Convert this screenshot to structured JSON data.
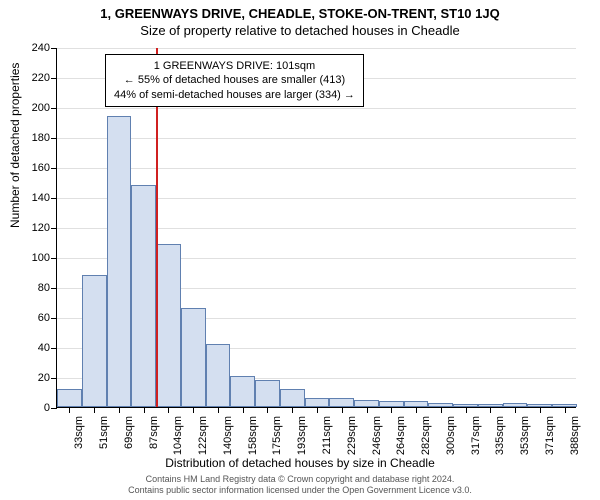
{
  "chart": {
    "type": "histogram",
    "title_main": "1, GREENWAYS DRIVE, CHEADLE, STOKE-ON-TRENT, ST10 1JQ",
    "title_sub": "Size of property relative to detached houses in Cheadle",
    "y_axis_title": "Number of detached properties",
    "x_axis_title": "Distribution of detached houses by size in Cheadle",
    "ylim": [
      0,
      240
    ],
    "ytick_step": 20,
    "background_color": "#ffffff",
    "grid_color": "#e0e0e0",
    "bar_fill": "#d4dff0",
    "bar_border": "#6080b0",
    "marker_color": "#d02020",
    "marker_x_index": 4,
    "x_labels": [
      "33sqm",
      "51sqm",
      "69sqm",
      "87sqm",
      "104sqm",
      "122sqm",
      "140sqm",
      "158sqm",
      "175sqm",
      "193sqm",
      "211sqm",
      "229sqm",
      "246sqm",
      "264sqm",
      "282sqm",
      "300sqm",
      "317sqm",
      "335sqm",
      "353sqm",
      "371sqm",
      "388sqm"
    ],
    "values": [
      12,
      88,
      194,
      148,
      109,
      66,
      42,
      21,
      18,
      12,
      6,
      6,
      5,
      4,
      4,
      3,
      2,
      2,
      3,
      2,
      2
    ],
    "title_fontsize": 13,
    "label_fontsize": 12,
    "tick_fontsize": 11,
    "annotation": {
      "line1": "1 GREENWAYS DRIVE: 101sqm",
      "line2": "← 55% of detached houses are smaller (413)",
      "line3": "44% of semi-detached houses are larger (334) →",
      "fontsize": 11,
      "border_color": "#000000",
      "background": "#ffffff"
    }
  },
  "copyright": {
    "line1": "Contains HM Land Registry data © Crown copyright and database right 2024.",
    "line2": "Contains public sector information licensed under the Open Government Licence v3.0."
  }
}
